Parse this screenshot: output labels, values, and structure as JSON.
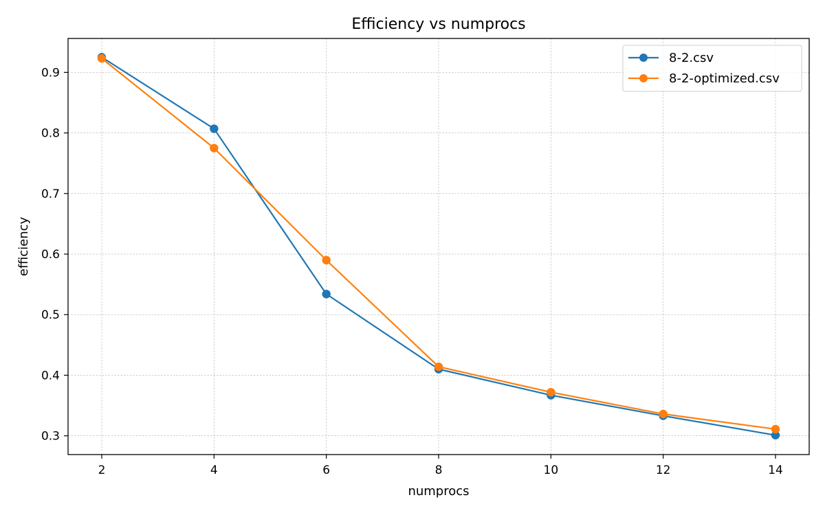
{
  "chart_data": {
    "type": "line",
    "title": "Efficiency vs numprocs",
    "xlabel": "numprocs",
    "ylabel": "efficiency",
    "xlim": [
      1.4,
      14.6
    ],
    "ylim": [
      0.269,
      0.956
    ],
    "xticks": [
      2,
      4,
      6,
      8,
      10,
      12,
      14
    ],
    "yticks": [
      0.3,
      0.4,
      0.5,
      0.6,
      0.7,
      0.8,
      0.9
    ],
    "ytick_labels": [
      "0.3",
      "0.4",
      "0.5",
      "0.6",
      "0.7",
      "0.8",
      "0.9"
    ],
    "grid": true,
    "legend_position": "top-right",
    "x": [
      2,
      4,
      6,
      8,
      10,
      12,
      14
    ],
    "series": [
      {
        "name": "8-2.csv",
        "color": "#1f77b4",
        "values": [
          0.925,
          0.807,
          0.534,
          0.41,
          0.367,
          0.333,
          0.301
        ]
      },
      {
        "name": "8-2-optimized.csv",
        "color": "#ff7f0e",
        "values": [
          0.923,
          0.775,
          0.59,
          0.414,
          0.372,
          0.336,
          0.311
        ]
      }
    ]
  }
}
